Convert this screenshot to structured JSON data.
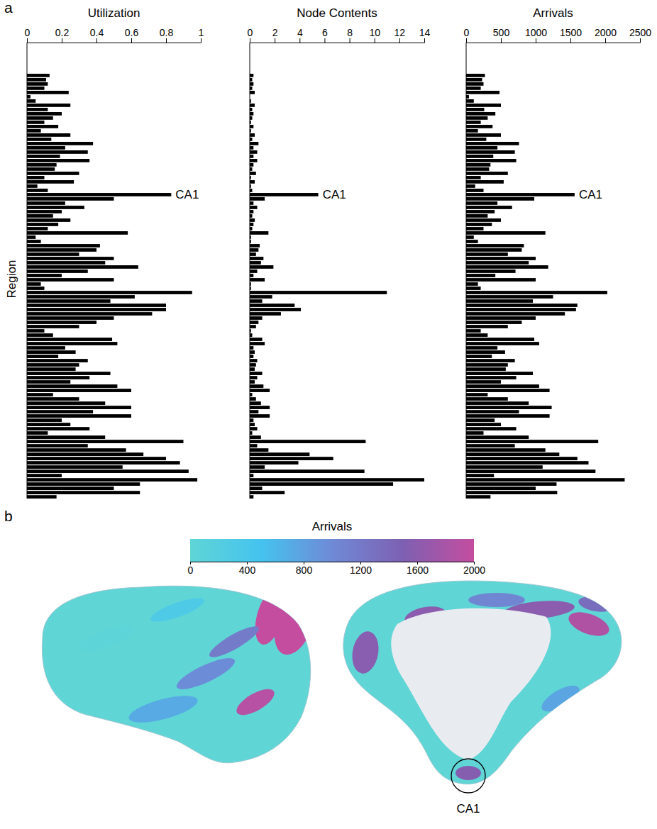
{
  "chart_data": [
    {
      "panel": "a",
      "type": "bar",
      "orientation": "horizontal",
      "title": "Utilization",
      "y_label": "Region",
      "color": "#000000",
      "categories": [
        null,
        null,
        null,
        null,
        null,
        null,
        null,
        null,
        null,
        null,
        null,
        null,
        null,
        null,
        null,
        null,
        null,
        null,
        null,
        null,
        null,
        null,
        null,
        null,
        null,
        null,
        null,
        null,
        "CA1",
        null,
        null,
        null,
        null,
        null,
        null,
        null,
        null,
        null,
        null,
        null,
        null,
        null,
        null,
        null,
        null,
        null,
        null,
        null,
        null,
        null,
        null,
        null,
        null,
        null,
        null,
        null,
        null,
        null,
        null,
        null,
        null,
        null,
        null,
        null,
        null,
        null,
        null,
        null,
        null,
        null,
        null,
        null,
        null,
        null,
        null,
        null,
        null,
        null,
        null,
        null,
        null,
        null,
        null,
        null,
        null,
        null,
        null,
        null,
        null,
        null,
        null,
        null,
        null,
        null,
        null,
        null,
        null,
        null,
        null,
        null
      ],
      "values": [
        0.13,
        0.11,
        0.12,
        0.1,
        0.24,
        0.02,
        0.05,
        0.25,
        0.12,
        0.2,
        0.15,
        0.1,
        0.18,
        0.08,
        0.25,
        0.14,
        0.38,
        0.22,
        0.35,
        0.19,
        0.36,
        0.17,
        0.16,
        0.3,
        0.1,
        0.27,
        0.06,
        0.12,
        0.83,
        0.5,
        0.22,
        0.33,
        0.2,
        0.15,
        0.25,
        0.18,
        0.12,
        0.58,
        0.05,
        0.08,
        0.42,
        0.4,
        0.3,
        0.5,
        0.45,
        0.64,
        0.35,
        0.2,
        0.5,
        0.08,
        0.1,
        0.95,
        0.62,
        0.48,
        0.8,
        0.8,
        0.72,
        0.5,
        0.4,
        0.3,
        0.1,
        0.15,
        0.49,
        0.52,
        0.22,
        0.28,
        0.18,
        0.35,
        0.3,
        0.28,
        0.48,
        0.36,
        0.25,
        0.52,
        0.6,
        0.15,
        0.3,
        0.45,
        0.6,
        0.38,
        0.6,
        0.2,
        0.25,
        0.36,
        0.12,
        0.45,
        0.9,
        0.35,
        0.57,
        0.67,
        0.8,
        0.88,
        0.55,
        0.93,
        0.2,
        0.98,
        0.65,
        0.5,
        0.65,
        0.17
      ],
      "xlim": [
        0,
        1
      ],
      "xticks": [
        0,
        0.2,
        0.4,
        0.6,
        0.8,
        1
      ]
    },
    {
      "type": "bar",
      "orientation": "horizontal",
      "title": "Node Contents",
      "color": "#000000",
      "categories": [
        null,
        null,
        null,
        null,
        null,
        null,
        null,
        null,
        null,
        null,
        null,
        null,
        null,
        null,
        null,
        null,
        null,
        null,
        null,
        null,
        null,
        null,
        null,
        null,
        null,
        null,
        null,
        null,
        "CA1",
        null,
        null,
        null,
        null,
        null,
        null,
        null,
        null,
        null,
        null,
        null,
        null,
        null,
        null,
        null,
        null,
        null,
        null,
        null,
        null,
        null,
        null,
        null,
        null,
        null,
        null,
        null,
        null,
        null,
        null,
        null,
        null,
        null,
        null,
        null,
        null,
        null,
        null,
        null,
        null,
        null,
        null,
        null,
        null,
        null,
        null,
        null,
        null,
        null,
        null,
        null,
        null,
        null,
        null,
        null,
        null,
        null,
        null,
        null,
        null,
        null,
        null,
        null,
        null,
        null,
        null,
        null,
        null,
        null,
        null,
        null
      ],
      "values": [
        0.3,
        0.2,
        0.3,
        0.2,
        0.4,
        0.0,
        0.1,
        0.4,
        0.2,
        0.3,
        0.2,
        0.1,
        0.3,
        0.1,
        0.4,
        0.2,
        0.7,
        0.3,
        0.6,
        0.3,
        0.6,
        0.3,
        0.2,
        0.5,
        0.1,
        0.4,
        0.1,
        0.2,
        5.5,
        1.2,
        0.3,
        0.6,
        0.3,
        0.2,
        0.4,
        0.3,
        0.2,
        1.5,
        0.1,
        0.1,
        0.8,
        0.7,
        0.5,
        1.1,
        0.9,
        1.9,
        0.6,
        0.3,
        1.2,
        0.1,
        0.1,
        11,
        1.8,
        1.0,
        3.6,
        4.1,
        2.5,
        1.0,
        0.7,
        0.5,
        0.1,
        0.2,
        1.0,
        1.2,
        0.3,
        0.4,
        0.3,
        0.6,
        0.5,
        0.4,
        1.0,
        0.6,
        0.4,
        1.1,
        1.6,
        0.2,
        0.5,
        0.9,
        1.6,
        0.7,
        1.6,
        0.3,
        0.4,
        0.6,
        0.2,
        0.9,
        9.3,
        0.6,
        1.5,
        4.8,
        6.7,
        3.9,
        1.2,
        9.2,
        0.3,
        14,
        11.5,
        1.0,
        2.8,
        0.3
      ],
      "xlim": [
        0,
        14
      ],
      "xticks": [
        0,
        2,
        4,
        6,
        8,
        10,
        12,
        14
      ]
    },
    {
      "type": "bar",
      "orientation": "horizontal",
      "title": "Arrivals",
      "color": "#000000",
      "categories": [
        null,
        null,
        null,
        null,
        null,
        null,
        null,
        null,
        null,
        null,
        null,
        null,
        null,
        null,
        null,
        null,
        null,
        null,
        null,
        null,
        null,
        null,
        null,
        null,
        null,
        null,
        null,
        null,
        "CA1",
        null,
        null,
        null,
        null,
        null,
        null,
        null,
        null,
        null,
        null,
        null,
        null,
        null,
        null,
        null,
        null,
        null,
        null,
        null,
        null,
        null,
        null,
        null,
        null,
        null,
        null,
        null,
        null,
        null,
        null,
        null,
        null,
        null,
        null,
        null,
        null,
        null,
        null,
        null,
        null,
        null,
        null,
        null,
        null,
        null,
        null,
        null,
        null,
        null,
        null,
        null,
        null,
        null,
        null,
        null,
        null,
        null,
        null,
        null,
        null,
        null,
        null,
        null,
        null,
        null,
        null,
        null,
        null,
        null,
        null,
        null
      ],
      "values": [
        270,
        230,
        250,
        210,
        480,
        40,
        110,
        500,
        260,
        420,
        310,
        210,
        380,
        170,
        500,
        290,
        760,
        450,
        700,
        390,
        720,
        350,
        330,
        600,
        210,
        540,
        130,
        250,
        1560,
        980,
        450,
        660,
        410,
        310,
        500,
        370,
        250,
        1140,
        110,
        170,
        830,
        800,
        600,
        1000,
        900,
        1180,
        710,
        420,
        1000,
        170,
        210,
        2030,
        1250,
        960,
        1600,
        1580,
        1420,
        1000,
        800,
        600,
        210,
        310,
        980,
        1050,
        450,
        560,
        370,
        700,
        600,
        570,
        960,
        720,
        500,
        1050,
        1200,
        310,
        600,
        900,
        1230,
        760,
        1200,
        410,
        500,
        720,
        250,
        900,
        1900,
        700,
        1140,
        1340,
        1600,
        1760,
        1100,
        1860,
        400,
        2280,
        1300,
        1000,
        1310,
        350
      ],
      "xlim": [
        0,
        2500
      ],
      "xticks": [
        0,
        500,
        1000,
        1500,
        2000,
        2500
      ]
    },
    {
      "panel": "b",
      "type": "map",
      "title": "Arrivals",
      "colorbar_range": [
        0,
        2000
      ],
      "colorbar_ticks": [
        0,
        400,
        800,
        1200,
        1600,
        2000
      ],
      "colors": [
        "#5fd5d6",
        "#45c3ef",
        "#6f8ad6",
        "#7e60b2",
        "#c44d9f"
      ],
      "annotation": "CA1"
    }
  ]
}
